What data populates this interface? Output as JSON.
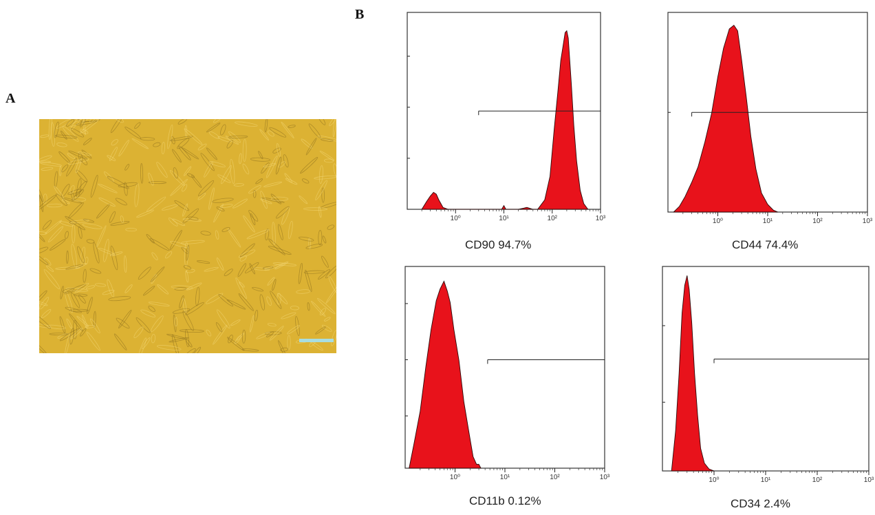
{
  "panels": {
    "a": "A",
    "b": "B"
  },
  "micrograph": {
    "colors": {
      "base": "#dcb233",
      "cell": "#8a6d1e",
      "highlight": "#f4d878",
      "scale_bar": "#a8dde0"
    },
    "scale_bar_present": true
  },
  "chart_data": [
    {
      "type": "area",
      "caption_marker": "CD90",
      "caption_value": "94.7%",
      "x_scale": "log",
      "xlim": [
        0.1,
        1000
      ],
      "x_ticks": [
        1,
        10,
        100,
        1000
      ],
      "x_tick_labels": [
        "10⁰",
        "10¹",
        "10²",
        "10³"
      ],
      "ylim": [
        0,
        1
      ],
      "y_ticks": [
        0.27,
        0.54,
        0.81
      ],
      "gate": {
        "x_start": 3,
        "x_end": 1000,
        "y": 0.52
      },
      "fill": "#e8121b",
      "series": {
        "x": [
          0.2,
          0.25,
          0.3,
          0.35,
          0.4,
          0.45,
          0.55,
          0.7,
          0.9,
          1.5,
          3,
          6,
          9,
          10,
          11,
          20,
          30,
          40,
          50,
          70,
          90,
          110,
          130,
          150,
          170,
          185,
          200,
          215,
          230,
          250,
          280,
          320,
          380,
          450,
          550
        ],
        "y": [
          0.0,
          0.04,
          0.07,
          0.09,
          0.08,
          0.05,
          0.01,
          0.0,
          0.0,
          0.0,
          0.0,
          0.0,
          0.0,
          0.02,
          0.0,
          0.0,
          0.01,
          0.0,
          0.0,
          0.05,
          0.18,
          0.42,
          0.62,
          0.78,
          0.88,
          0.93,
          0.95,
          0.9,
          0.8,
          0.65,
          0.45,
          0.25,
          0.1,
          0.03,
          0.0
        ]
      }
    },
    {
      "type": "area",
      "caption_marker": "CD44",
      "caption_value": "74.4%",
      "x_scale": "log",
      "xlim": [
        0.1,
        1000
      ],
      "x_ticks": [
        1,
        10,
        100,
        1000
      ],
      "x_tick_labels": [
        "10⁰",
        "10¹",
        "10²",
        "10³"
      ],
      "ylim": [
        0,
        1
      ],
      "y_ticks": [
        0.52
      ],
      "gate": {
        "x_start": 0.3,
        "x_end": 1000,
        "y": 0.52
      },
      "fill": "#e8121b",
      "series": {
        "x": [
          0.13,
          0.17,
          0.22,
          0.3,
          0.4,
          0.55,
          0.75,
          1.0,
          1.3,
          1.7,
          2.1,
          2.5,
          3.0,
          3.7,
          4.6,
          5.8,
          7.5,
          10,
          13,
          16
        ],
        "y": [
          0.0,
          0.03,
          0.08,
          0.15,
          0.24,
          0.36,
          0.52,
          0.7,
          0.86,
          0.95,
          0.98,
          0.94,
          0.8,
          0.6,
          0.4,
          0.22,
          0.1,
          0.04,
          0.01,
          0.0
        ]
      }
    },
    {
      "type": "area",
      "caption_marker": "CD11b",
      "caption_value": "0.12%",
      "x_scale": "log",
      "xlim": [
        0.1,
        1000
      ],
      "x_ticks": [
        1,
        10,
        100,
        1000
      ],
      "x_tick_labels": [
        "10⁰",
        "10¹",
        "10²",
        "10³"
      ],
      "ylim": [
        0,
        1
      ],
      "y_ticks": [
        0.27,
        0.56,
        0.85
      ],
      "gate": {
        "x_start": 4.5,
        "x_end": 1000,
        "y": 0.56
      },
      "fill": "#e8121b",
      "series": {
        "x": [
          0.12,
          0.15,
          0.2,
          0.26,
          0.33,
          0.42,
          0.5,
          0.6,
          0.7,
          0.8,
          0.95,
          1.2,
          1.5,
          1.9,
          2.3,
          2.7,
          3.0,
          3.3
        ],
        "y": [
          0.0,
          0.12,
          0.3,
          0.52,
          0.72,
          0.86,
          0.93,
          0.96,
          0.92,
          0.85,
          0.72,
          0.55,
          0.35,
          0.18,
          0.06,
          0.02,
          0.02,
          0.0
        ]
      }
    },
    {
      "type": "area",
      "caption_marker": "CD34",
      "caption_value": "2.4%",
      "x_scale": "log",
      "xlim": [
        0.1,
        1000
      ],
      "x_ticks": [
        1,
        10,
        100,
        1000
      ],
      "x_tick_labels": [
        "10⁰",
        "10¹",
        "10²",
        "10³"
      ],
      "ylim": [
        0,
        1
      ],
      "y_ticks": [
        0.35,
        0.74
      ],
      "gate": {
        "x_start": 1.0,
        "x_end": 1000,
        "y": 0.57
      },
      "fill": "#e8121b",
      "series": {
        "x": [
          0.15,
          0.18,
          0.21,
          0.24,
          0.27,
          0.3,
          0.33,
          0.37,
          0.42,
          0.48,
          0.55,
          0.65,
          0.8,
          1.0
        ],
        "y": [
          0.0,
          0.2,
          0.5,
          0.8,
          0.95,
          0.99,
          0.93,
          0.75,
          0.5,
          0.28,
          0.12,
          0.04,
          0.01,
          0.0
        ]
      }
    }
  ]
}
